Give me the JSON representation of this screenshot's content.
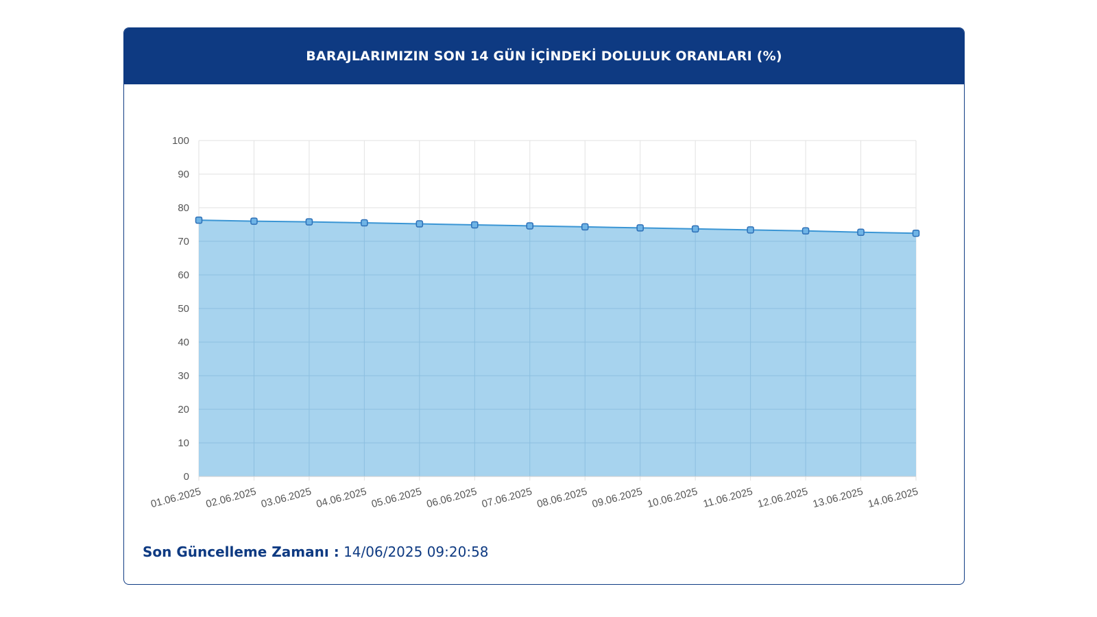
{
  "header": {
    "title": "BARAJLARIMIZIN SON 14 GÜN İÇİNDEKİ DOLULUK ORANLARI (%)"
  },
  "footer": {
    "label": "Son Güncelleme Zamanı :",
    "value": "14/06/2025 09:20:58"
  },
  "colors": {
    "header": "#0e3a82",
    "fill": "#9fcfed",
    "line": "#3a95d4",
    "marker": "#2d6fb6"
  },
  "chart_data": {
    "type": "area",
    "title": "BARAJLARIMIZIN SON 14 GÜN İÇİNDEKİ DOLULUK ORANLARI (%)",
    "xlabel": "",
    "ylabel": "",
    "ylim": [
      0,
      100
    ],
    "yticks": [
      0,
      10,
      20,
      30,
      40,
      50,
      60,
      70,
      80,
      90,
      100
    ],
    "grid": true,
    "categories": [
      "01.06.2025",
      "02.06.2025",
      "03.06.2025",
      "04.06.2025",
      "05.06.2025",
      "06.06.2025",
      "07.06.2025",
      "08.06.2025",
      "09.06.2025",
      "10.06.2025",
      "11.06.2025",
      "12.06.2025",
      "13.06.2025",
      "14.06.2025"
    ],
    "values": [
      76.3,
      76.0,
      75.8,
      75.5,
      75.2,
      74.9,
      74.6,
      74.3,
      74.0,
      73.7,
      73.4,
      73.1,
      72.7,
      72.4
    ]
  }
}
